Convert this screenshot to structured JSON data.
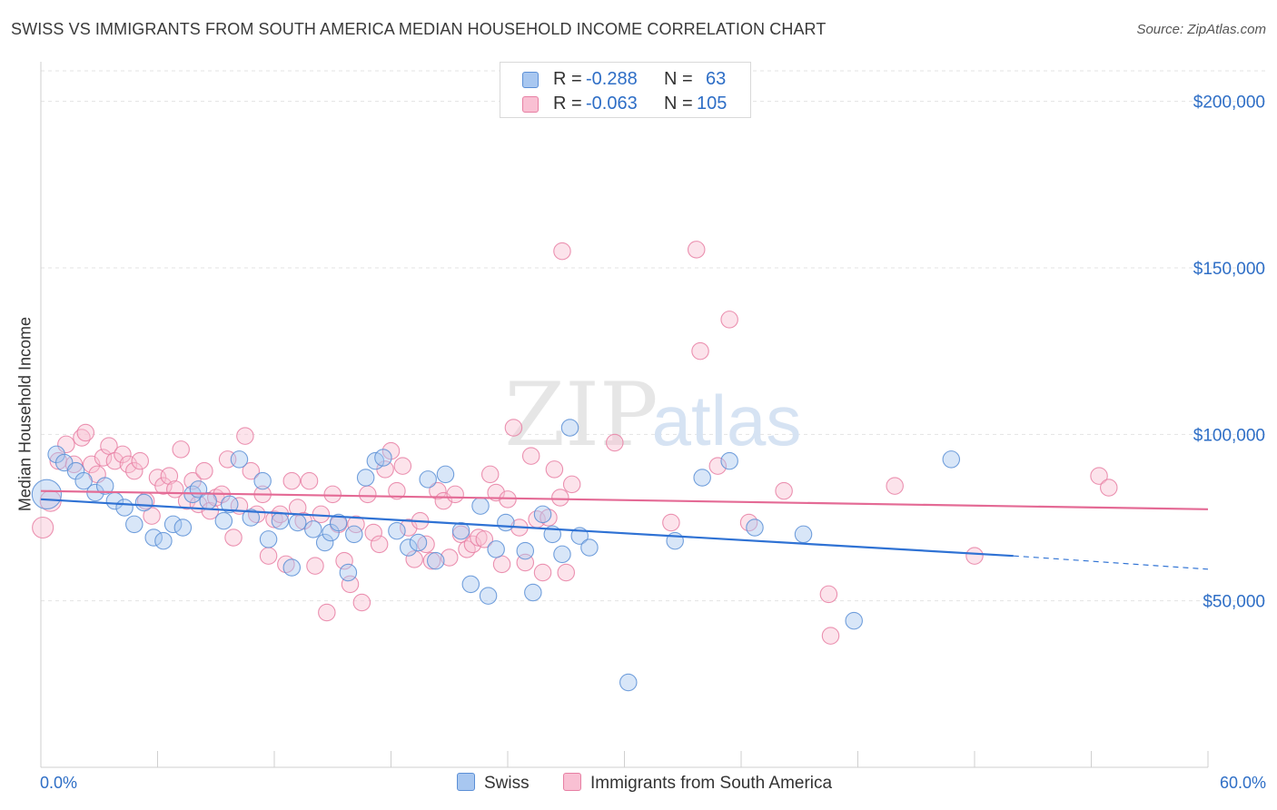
{
  "title": "SWISS VS IMMIGRANTS FROM SOUTH AMERICA MEDIAN HOUSEHOLD INCOME CORRELATION CHART",
  "source": "Source: ZipAtlas.com",
  "watermark": {
    "zip": "ZIP",
    "atlas": "atlas"
  },
  "legend_top": {
    "rows": [
      {
        "r_label": "R =",
        "r_value": "-0.288",
        "n_label": "N =",
        "n_value": "63",
        "color": "#a8c7f0",
        "border": "#5b8fd6"
      },
      {
        "r_label": "R =",
        "r_value": "-0.063",
        "n_label": "N =",
        "n_value": "105",
        "color": "#f9c0d3",
        "border": "#e77fa3"
      }
    ]
  },
  "legend_bottom": [
    {
      "name": "Swiss",
      "color": "#a8c7f0",
      "border": "#5b8fd6"
    },
    {
      "name": "Immigrants from South America",
      "color": "#f9c0d3",
      "border": "#e77fa3"
    }
  ],
  "x_axis": {
    "min_label": "0.0%",
    "max_label": "60.0%"
  },
  "chart_data": {
    "type": "scatter",
    "title": "SWISS VS IMMIGRANTS FROM SOUTH AMERICA MEDIAN HOUSEHOLD INCOME CORRELATION CHART",
    "xlabel": "",
    "ylabel": "Median Household Income",
    "xlim": [
      0,
      60
    ],
    "ylim": [
      0,
      210000
    ],
    "y_ticks": [
      {
        "value": 50000,
        "label": "$50,000"
      },
      {
        "value": 100000,
        "label": "$100,000"
      },
      {
        "value": 150000,
        "label": "$150,000"
      },
      {
        "value": 200000,
        "label": "$200,000"
      }
    ],
    "series": [
      {
        "name": "Swiss",
        "color": "#a8c7f0",
        "stroke": "#5b8fd6",
        "trend": {
          "x0": 0,
          "y0": 80500,
          "x1": 50,
          "y1": 63500,
          "dash_to_x": 60,
          "dash_to_y": 59500,
          "color": "#2f72d4"
        },
        "points": [
          [
            0.3,
            82000,
            14
          ],
          [
            0.8,
            94000,
            8
          ],
          [
            1.2,
            91500,
            8
          ],
          [
            1.8,
            89000,
            8
          ],
          [
            2.2,
            86000,
            8
          ],
          [
            2.8,
            82500,
            8
          ],
          [
            3.3,
            84500,
            8
          ],
          [
            3.8,
            80000,
            8
          ],
          [
            4.3,
            78000,
            8
          ],
          [
            4.8,
            73000,
            8
          ],
          [
            5.3,
            79500,
            8
          ],
          [
            5.8,
            69000,
            8
          ],
          [
            6.3,
            68000,
            8
          ],
          [
            6.8,
            73000,
            8
          ],
          [
            7.3,
            72000,
            8
          ],
          [
            7.8,
            82000,
            8
          ],
          [
            8.1,
            83500,
            8
          ],
          [
            8.6,
            80000,
            8
          ],
          [
            9.4,
            74000,
            8
          ],
          [
            9.7,
            79000,
            8
          ],
          [
            10.2,
            92500,
            8
          ],
          [
            10.8,
            75000,
            8
          ],
          [
            11.4,
            86000,
            8
          ],
          [
            11.7,
            68500,
            8
          ],
          [
            12.3,
            74000,
            8
          ],
          [
            12.9,
            60000,
            8
          ],
          [
            13.2,
            73500,
            8
          ],
          [
            14.0,
            71500,
            8
          ],
          [
            14.6,
            67500,
            8
          ],
          [
            14.9,
            70500,
            8
          ],
          [
            15.3,
            73500,
            8
          ],
          [
            15.8,
            58500,
            8
          ],
          [
            16.1,
            70000,
            8
          ],
          [
            16.7,
            87000,
            8
          ],
          [
            17.2,
            92000,
            8
          ],
          [
            17.6,
            93000,
            8
          ],
          [
            18.3,
            71000,
            8
          ],
          [
            18.9,
            66000,
            8
          ],
          [
            19.4,
            67500,
            8
          ],
          [
            19.9,
            86500,
            8
          ],
          [
            20.3,
            62000,
            8
          ],
          [
            20.8,
            88000,
            8
          ],
          [
            21.6,
            71000,
            8
          ],
          [
            22.1,
            55000,
            8
          ],
          [
            22.6,
            78500,
            8
          ],
          [
            23.0,
            51500,
            8
          ],
          [
            23.4,
            65500,
            8
          ],
          [
            23.9,
            73500,
            8
          ],
          [
            24.9,
            65000,
            8
          ],
          [
            25.3,
            52500,
            8
          ],
          [
            25.8,
            76000,
            8
          ],
          [
            26.3,
            70000,
            8
          ],
          [
            26.8,
            64000,
            8
          ],
          [
            27.2,
            102000,
            8
          ],
          [
            27.7,
            69500,
            8
          ],
          [
            28.2,
            66000,
            8
          ],
          [
            30.2,
            25500,
            8
          ],
          [
            32.6,
            68000,
            8
          ],
          [
            34.0,
            87000,
            8
          ],
          [
            35.4,
            92000,
            8
          ],
          [
            36.7,
            72000,
            8
          ],
          [
            39.2,
            70000,
            8
          ],
          [
            46.8,
            92500,
            8
          ],
          [
            41.8,
            44000,
            8
          ]
        ]
      },
      {
        "name": "Immigrants from South America",
        "color": "#f9c0d3",
        "stroke": "#e77fa3",
        "trend": {
          "x0": 0,
          "y0": 83000,
          "x1": 60,
          "y1": 77500,
          "color": "#e46a95"
        },
        "points": [
          [
            0.1,
            72000,
            10
          ],
          [
            0.5,
            80000,
            10
          ],
          [
            0.9,
            92000,
            8
          ],
          [
            1.3,
            97000,
            8
          ],
          [
            1.7,
            91000,
            8
          ],
          [
            2.1,
            99000,
            8
          ],
          [
            2.3,
            100500,
            8
          ],
          [
            2.6,
            91000,
            8
          ],
          [
            2.9,
            88000,
            8
          ],
          [
            3.2,
            93000,
            8
          ],
          [
            3.5,
            96500,
            8
          ],
          [
            3.8,
            92000,
            8
          ],
          [
            4.2,
            94000,
            8
          ],
          [
            4.5,
            91000,
            8
          ],
          [
            4.8,
            89000,
            8
          ],
          [
            5.1,
            92000,
            8
          ],
          [
            5.4,
            80000,
            8
          ],
          [
            5.7,
            75500,
            8
          ],
          [
            6.0,
            87000,
            8
          ],
          [
            6.3,
            84500,
            8
          ],
          [
            6.6,
            87500,
            8
          ],
          [
            6.9,
            83500,
            8
          ],
          [
            7.2,
            95500,
            8
          ],
          [
            7.5,
            80000,
            8
          ],
          [
            7.8,
            86000,
            8
          ],
          [
            8.1,
            79000,
            8
          ],
          [
            8.4,
            89000,
            8
          ],
          [
            8.7,
            77000,
            8
          ],
          [
            9.0,
            81000,
            8
          ],
          [
            9.3,
            82000,
            8
          ],
          [
            9.6,
            92500,
            8
          ],
          [
            9.9,
            69000,
            8
          ],
          [
            10.2,
            78500,
            8
          ],
          [
            10.5,
            99500,
            8
          ],
          [
            10.8,
            89000,
            8
          ],
          [
            11.1,
            76000,
            8
          ],
          [
            11.4,
            82000,
            8
          ],
          [
            11.7,
            63500,
            8
          ],
          [
            12.0,
            74500,
            8
          ],
          [
            12.3,
            76000,
            8
          ],
          [
            12.6,
            61000,
            8
          ],
          [
            12.9,
            86000,
            8
          ],
          [
            13.2,
            78000,
            8
          ],
          [
            13.5,
            74000,
            8
          ],
          [
            13.8,
            86000,
            8
          ],
          [
            14.1,
            60500,
            8
          ],
          [
            14.4,
            76000,
            8
          ],
          [
            14.7,
            46500,
            8
          ],
          [
            15.0,
            82000,
            8
          ],
          [
            15.3,
            73000,
            8
          ],
          [
            15.6,
            62000,
            8
          ],
          [
            15.9,
            55000,
            8
          ],
          [
            16.2,
            73000,
            8
          ],
          [
            16.5,
            49500,
            8
          ],
          [
            16.8,
            82000,
            8
          ],
          [
            17.1,
            70500,
            8
          ],
          [
            17.4,
            67000,
            8
          ],
          [
            17.7,
            89500,
            8
          ],
          [
            18.0,
            95000,
            8
          ],
          [
            18.3,
            83000,
            8
          ],
          [
            18.6,
            90500,
            8
          ],
          [
            18.9,
            72000,
            8
          ],
          [
            19.2,
            62500,
            8
          ],
          [
            19.5,
            74000,
            8
          ],
          [
            19.8,
            67000,
            8
          ],
          [
            20.1,
            62000,
            8
          ],
          [
            20.4,
            83000,
            8
          ],
          [
            20.7,
            80000,
            8
          ],
          [
            21.0,
            63000,
            8
          ],
          [
            21.3,
            82000,
            8
          ],
          [
            21.6,
            70000,
            8
          ],
          [
            21.9,
            65500,
            8
          ],
          [
            22.2,
            67000,
            8
          ],
          [
            22.5,
            69000,
            8
          ],
          [
            22.8,
            68500,
            8
          ],
          [
            23.1,
            88000,
            8
          ],
          [
            23.4,
            82500,
            8
          ],
          [
            23.7,
            61000,
            8
          ],
          [
            24.0,
            80500,
            8
          ],
          [
            24.3,
            102000,
            8
          ],
          [
            24.6,
            72000,
            8
          ],
          [
            24.9,
            61500,
            8
          ],
          [
            25.2,
            93500,
            8
          ],
          [
            25.5,
            74500,
            8
          ],
          [
            25.8,
            58500,
            8
          ],
          [
            26.1,
            75000,
            8
          ],
          [
            26.4,
            89500,
            8
          ],
          [
            26.7,
            81000,
            8
          ],
          [
            27.0,
            58500,
            8
          ],
          [
            27.3,
            85000,
            8
          ],
          [
            26.8,
            155000,
            8
          ],
          [
            29.5,
            97500,
            8
          ],
          [
            32.4,
            73500,
            8
          ],
          [
            33.7,
            155500,
            8
          ],
          [
            33.9,
            125000,
            8
          ],
          [
            34.8,
            90500,
            8
          ],
          [
            35.4,
            134500,
            8
          ],
          [
            36.4,
            73500,
            8
          ],
          [
            38.2,
            83000,
            8
          ],
          [
            40.5,
            52000,
            8
          ],
          [
            40.6,
            39500,
            8
          ],
          [
            43.9,
            84500,
            8
          ],
          [
            48.0,
            63500,
            8
          ],
          [
            54.4,
            87500,
            8
          ],
          [
            54.9,
            84000,
            8
          ]
        ]
      }
    ]
  }
}
